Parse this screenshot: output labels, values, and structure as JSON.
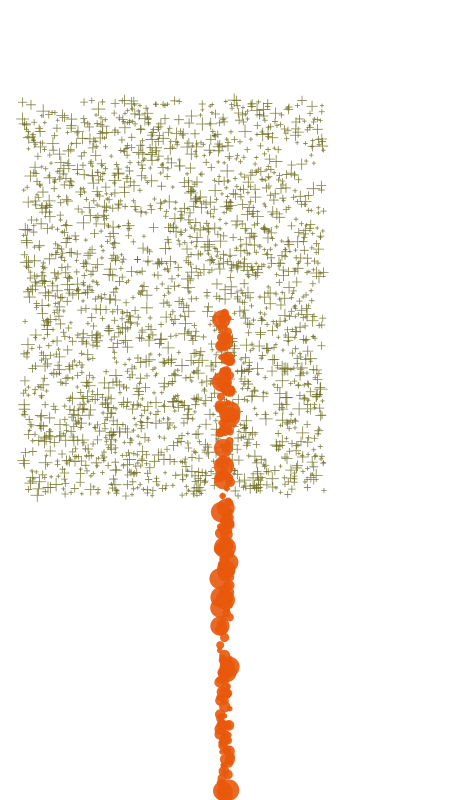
{
  "chart_data": {
    "type": "scatter",
    "title": "",
    "xlabel": "",
    "ylabel": "",
    "grid": false,
    "legend": "none",
    "axes_visible": false,
    "xlim": [
      0,
      1
    ],
    "ylim": [
      0,
      1
    ],
    "series": [
      {
        "marker": "plus",
        "color": "#6b6b1e",
        "count": 2200,
        "distribution": "uniform",
        "x_range": [
          0.05,
          0.72
        ],
        "y_range": [
          0.38,
          0.875
        ],
        "size_range": [
          2,
          7
        ]
      },
      {
        "marker": "circle",
        "color": "#e8590c",
        "count": 240,
        "distribution": "vertical-strip",
        "x_center": 0.5,
        "x_jitter": 0.012,
        "y_range": [
          0.0,
          0.61
        ],
        "size_range": [
          2.5,
          11
        ]
      }
    ]
  }
}
